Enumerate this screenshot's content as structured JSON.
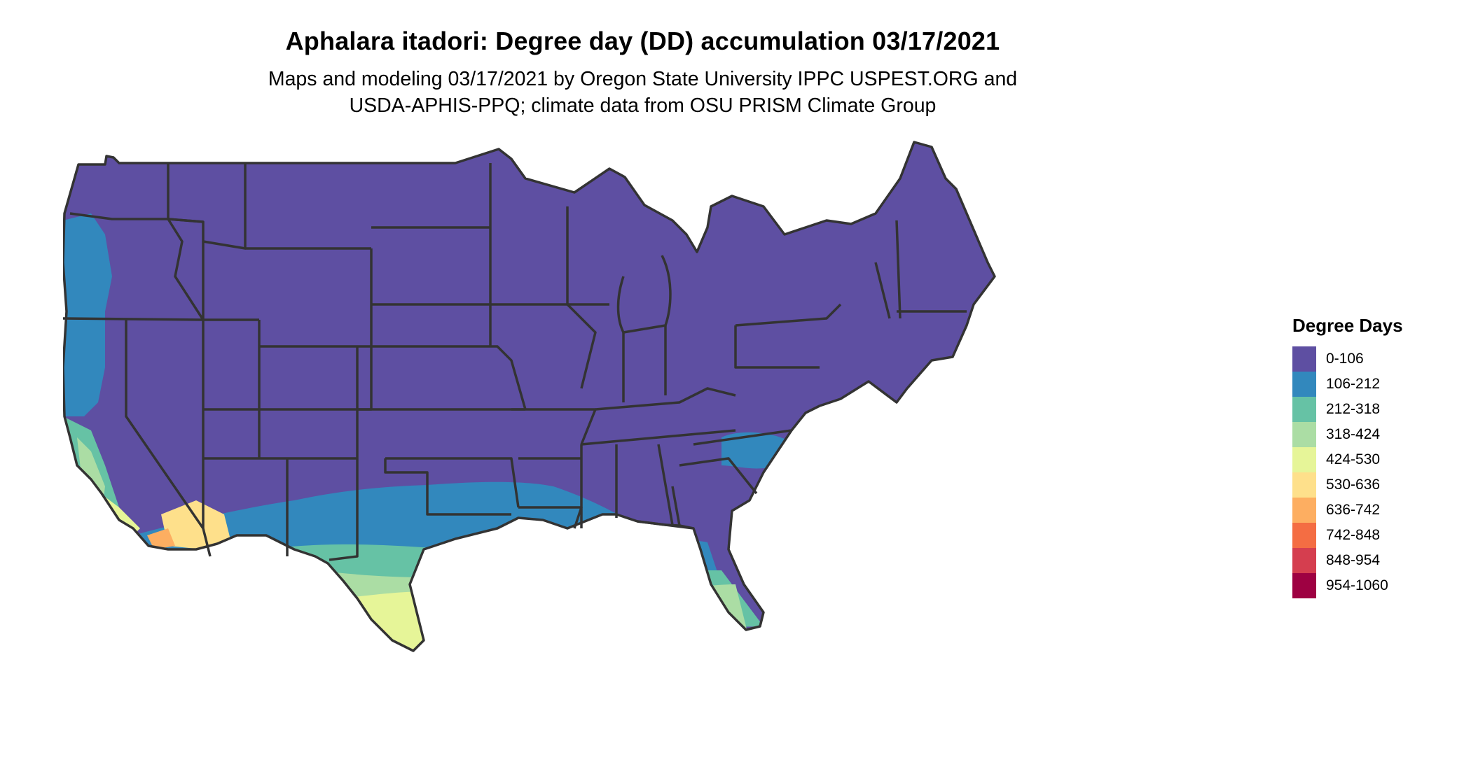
{
  "title": "Aphalara itadori: Degree day (DD) accumulation 03/17/2021",
  "subtitle_line1": "Maps and modeling 03/17/2021 by Oregon State University IPPC USPEST.ORG and",
  "subtitle_line2": "USDA-APHIS-PPQ; climate data from OSU PRISM Climate Group",
  "legend": {
    "title": "Degree Days",
    "items": [
      {
        "label": "0-106",
        "color": "#5E4FA2"
      },
      {
        "label": "106-212",
        "color": "#3288BD"
      },
      {
        "label": "212-318",
        "color": "#66C2A5"
      },
      {
        "label": "318-424",
        "color": "#ABDDA4"
      },
      {
        "label": "424-530",
        "color": "#E6F598"
      },
      {
        "label": "530-636",
        "color": "#FEE08B"
      },
      {
        "label": "636-742",
        "color": "#FDAE61"
      },
      {
        "label": "742-848",
        "color": "#F46D43"
      },
      {
        "label": "848-954",
        "color": "#D53E4F"
      },
      {
        "label": "954-1060",
        "color": "#9E0142"
      }
    ]
  }
}
